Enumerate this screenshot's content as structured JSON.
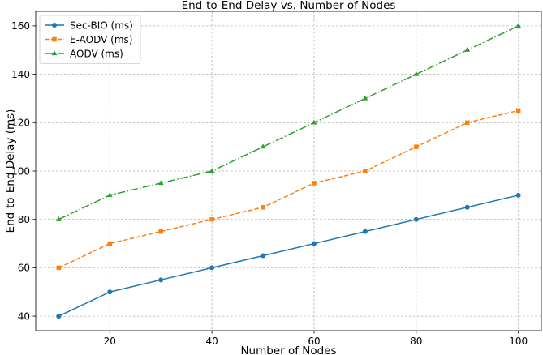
{
  "chart_data": {
    "type": "line",
    "title": "End-to-End Delay vs. Number of Nodes",
    "xlabel": "Number of Nodes",
    "ylabel": "End-to-End Delay (ms)",
    "x": [
      10,
      20,
      30,
      40,
      50,
      60,
      70,
      80,
      90,
      100
    ],
    "xlim": [
      5.5,
      104.5
    ],
    "ylim": [
      34,
      166
    ],
    "xticks": [
      20,
      40,
      60,
      80,
      100
    ],
    "yticks": [
      40,
      60,
      80,
      100,
      120,
      140,
      160
    ],
    "grid": true,
    "legend_position": "top-left",
    "series": [
      {
        "name": "Sec-BIO (ms)",
        "values": [
          40,
          50,
          55,
          60,
          65,
          70,
          75,
          80,
          85,
          90
        ],
        "color": "#1f77b4",
        "marker": "circle",
        "linestyle": "solid"
      },
      {
        "name": "E-AODV (ms)",
        "values": [
          60,
          70,
          75,
          80,
          85,
          95,
          100,
          110,
          120,
          125
        ],
        "color": "#ff7f0e",
        "marker": "square",
        "linestyle": "dashed"
      },
      {
        "name": "AODV (ms)",
        "values": [
          80,
          90,
          95,
          100,
          110,
          120,
          130,
          140,
          150,
          160
        ],
        "color": "#2ca02c",
        "marker": "triangle",
        "linestyle": "dashdot"
      }
    ]
  }
}
